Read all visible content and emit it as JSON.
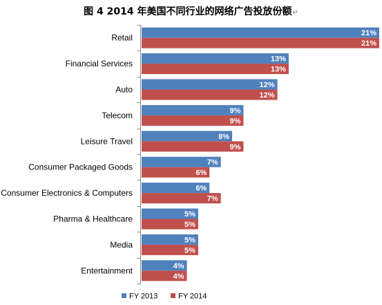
{
  "title": {
    "text": "图 4  2014 年美国不同行业的网络广告投放份额",
    "return_mark": "↵"
  },
  "chart_data": {
    "type": "bar",
    "orientation": "horizontal",
    "categories": [
      "Retail",
      "Financial Services",
      "Auto",
      "Telecom",
      "Leisure Travel",
      "Consumer Packaged Goods",
      "Consumer Electronics & Computers",
      "Pharma & Healthcare",
      "Media",
      "Entertainment"
    ],
    "series": [
      {
        "name": "FY 2013",
        "values": [
          21,
          13,
          12,
          9,
          8,
          7,
          6,
          5,
          5,
          4
        ],
        "color": "#4F81BD"
      },
      {
        "name": "FY 2014",
        "values": [
          21,
          13,
          12,
          9,
          9,
          6,
          7,
          5,
          5,
          4
        ],
        "color": "#C0504D"
      }
    ],
    "value_format": "{v}%",
    "xlim": [
      0,
      21
    ],
    "grid": false,
    "legend": "bottom",
    "category_axis": "left"
  }
}
